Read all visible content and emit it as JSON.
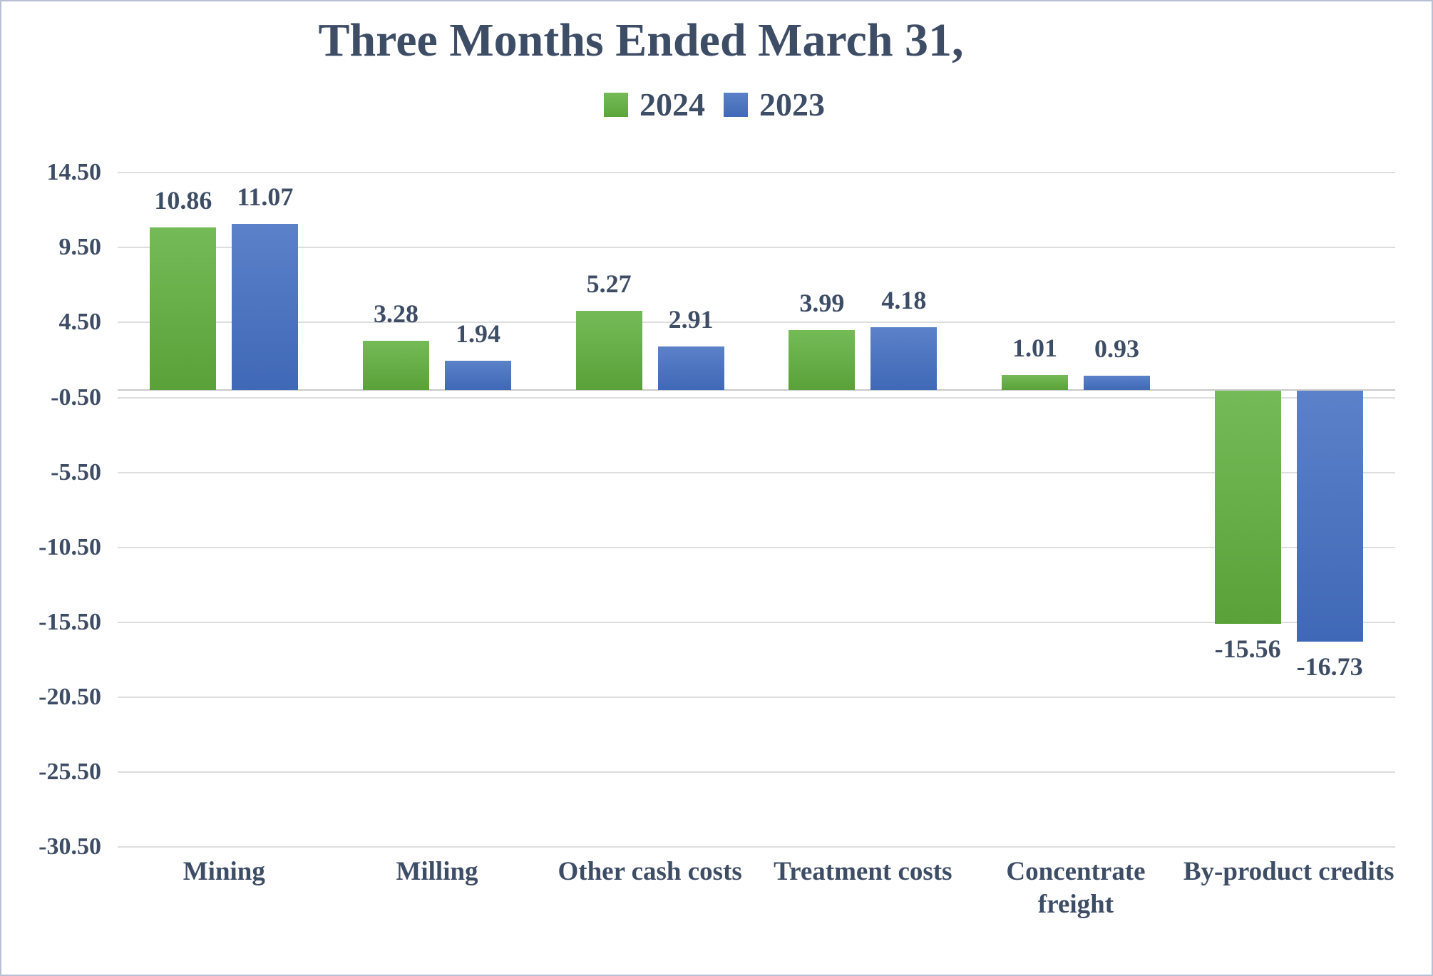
{
  "title": "Three Months Ended March 31,",
  "colors": {
    "text": "#3e4d66",
    "series_2024_green": "#6cb14e",
    "series_2023_blue": "#4472c4",
    "gridline": "#dddddd",
    "axis_line": "#c9c9c9",
    "frame_border": "#b9c0d5",
    "background": "#ffffff"
  },
  "legend": {
    "items": [
      {
        "label": "2024",
        "swatch": "green-square-icon"
      },
      {
        "label": "2023",
        "swatch": "blue-square-icon"
      }
    ]
  },
  "chart_data": {
    "type": "bar",
    "title": "Three Months Ended March 31,",
    "categories": [
      "Mining",
      "Milling",
      "Other cash costs",
      "Treatment costs",
      "Concentrate freight",
      "By-product credits"
    ],
    "series": [
      {
        "name": "2024",
        "color": "#6cb14e",
        "values": [
          10.86,
          3.28,
          5.27,
          3.99,
          1.01,
          -15.56
        ]
      },
      {
        "name": "2023",
        "color": "#4472c4",
        "values": [
          11.07,
          1.94,
          2.91,
          4.18,
          0.93,
          -16.73
        ]
      }
    ],
    "value_labels": [
      [
        "10.86",
        "3.28",
        "5.27",
        "3.99",
        "1.01",
        "-15.56"
      ],
      [
        "11.07",
        "1.94",
        "2.91",
        "4.18",
        "0.93",
        "-16.73"
      ]
    ],
    "y_ticks": [
      14.5,
      9.5,
      4.5,
      -0.5,
      -5.5,
      -10.5,
      -15.5,
      -20.5,
      -25.5,
      -30.5
    ],
    "y_tick_labels": [
      "14.50",
      "9.50",
      "4.50",
      "-0.50",
      "-5.50",
      "-10.50",
      "-15.50",
      "-20.50",
      "-25.50",
      "-30.50"
    ],
    "ylim": [
      -30.5,
      14.5
    ],
    "xlabel": "",
    "ylabel": "",
    "grid": true,
    "legend_position": "top-center",
    "bar_orientation": "vertical"
  }
}
